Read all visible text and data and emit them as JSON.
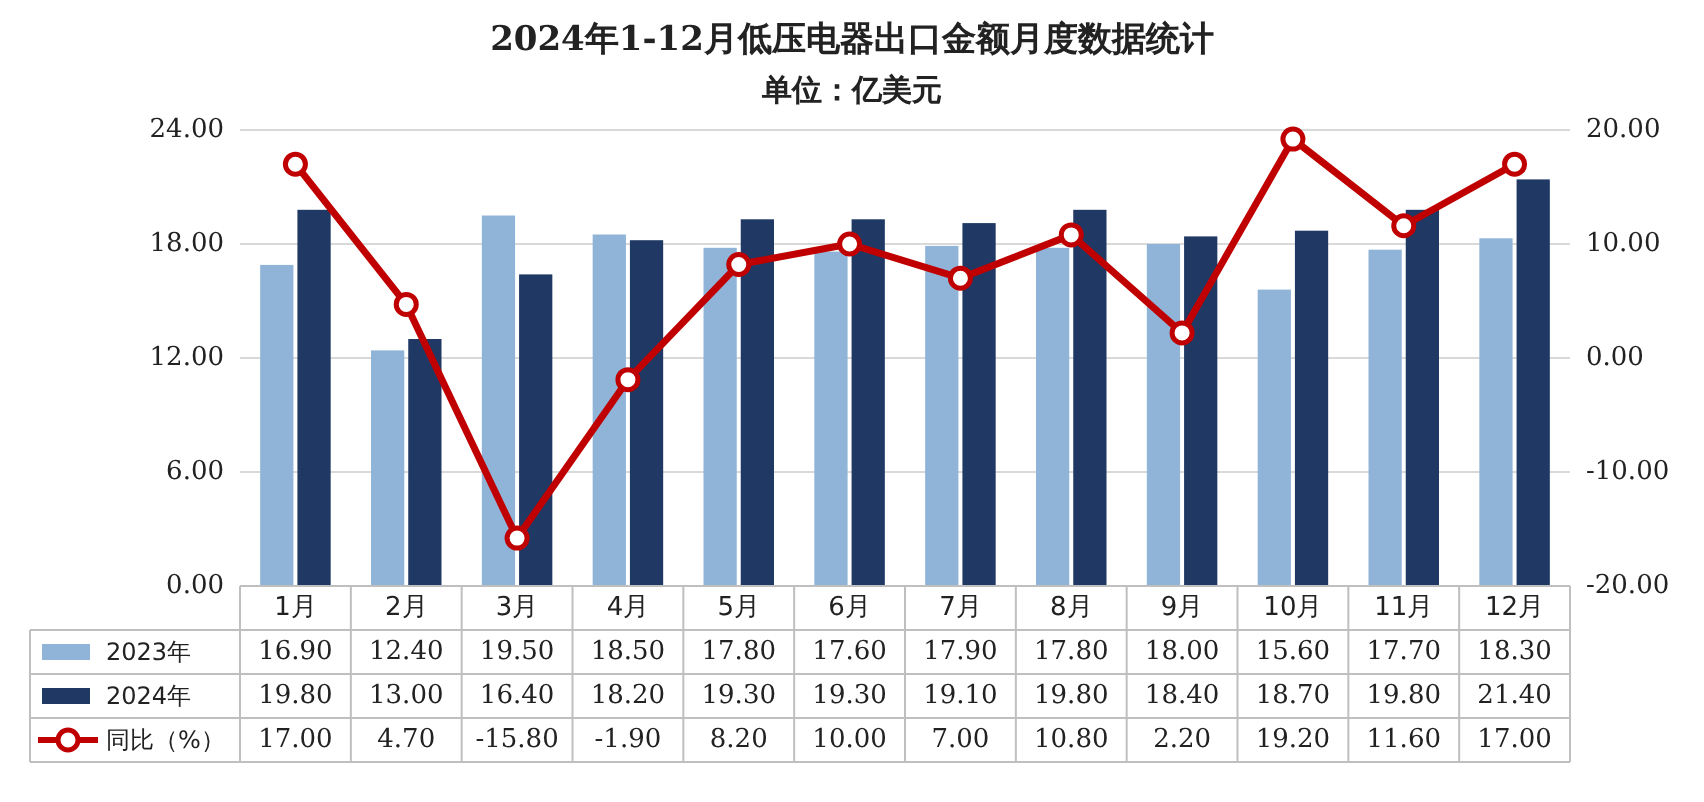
{
  "chart_data": {
    "type": "bar",
    "title": "2024年1-12月低压电器出口金额月度数据统计",
    "subtitle": "单位：亿美元",
    "categories": [
      "1月",
      "2月",
      "3月",
      "4月",
      "5月",
      "6月",
      "7月",
      "8月",
      "9月",
      "10月",
      "11月",
      "12月"
    ],
    "series": [
      {
        "name": "2023年",
        "color": "#8fb4d8",
        "values": [
          16.9,
          12.4,
          19.5,
          18.5,
          17.8,
          17.6,
          17.9,
          17.8,
          18.0,
          15.6,
          17.7,
          18.3
        ],
        "value_labels": [
          "16.90",
          "12.40",
          "19.50",
          "18.50",
          "17.80",
          "17.60",
          "17.90",
          "17.80",
          "18.00",
          "15.60",
          "17.70",
          "18.30"
        ]
      },
      {
        "name": "2024年",
        "color": "#1f3864",
        "values": [
          19.8,
          13.0,
          16.4,
          18.2,
          19.3,
          19.3,
          19.1,
          19.8,
          18.4,
          18.7,
          19.8,
          21.4
        ],
        "value_labels": [
          "19.80",
          "13.00",
          "16.40",
          "18.20",
          "19.30",
          "19.30",
          "19.10",
          "19.80",
          "18.40",
          "18.70",
          "19.80",
          "21.40"
        ]
      },
      {
        "name": "同比（%）",
        "type": "line",
        "axis": "y2",
        "color": "#c00000",
        "marker": "circle",
        "values": [
          17.0,
          4.7,
          -15.8,
          -1.9,
          8.2,
          10.0,
          7.0,
          10.8,
          2.2,
          19.2,
          11.6,
          17.0
        ],
        "value_labels": [
          "17.00",
          "4.70",
          "-15.80",
          "-1.90",
          "8.20",
          "10.00",
          "7.00",
          "10.80",
          "2.20",
          "19.20",
          "11.60",
          "17.00"
        ]
      }
    ],
    "ylim": [
      0,
      24
    ],
    "yticks": [
      {
        "value": 0,
        "label": "0.00"
      },
      {
        "value": 6,
        "label": "6.00"
      },
      {
        "value": 12,
        "label": "12.00"
      },
      {
        "value": 18,
        "label": "18.00"
      },
      {
        "value": 24,
        "label": "24.00"
      }
    ],
    "y2lim": [
      -20,
      20
    ],
    "y2ticks": [
      {
        "value": -20,
        "label": "-20.00"
      },
      {
        "value": -10,
        "label": "-10.00"
      },
      {
        "value": 0,
        "label": "0.00"
      },
      {
        "value": 10,
        "label": "10.00"
      },
      {
        "value": 20,
        "label": "20.00"
      }
    ],
    "grid": "y",
    "legend": "bottom"
  }
}
